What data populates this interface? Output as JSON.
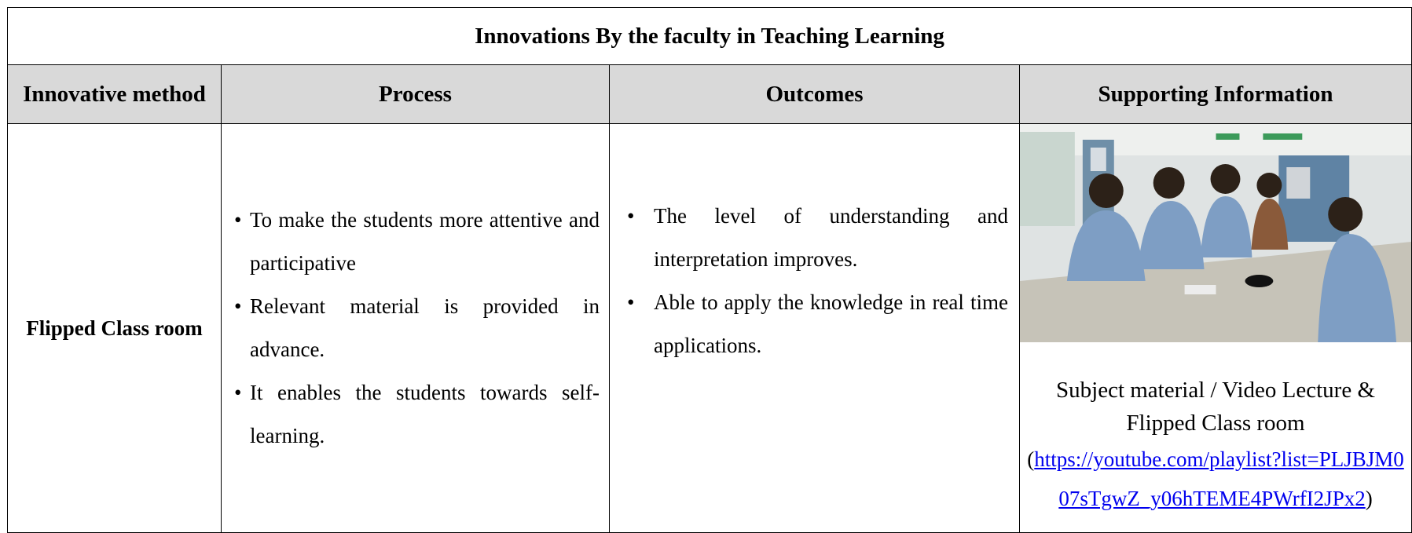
{
  "title": "Innovations By the faculty in Teaching Learning",
  "table": {
    "headers": [
      "Innovative method",
      "Process",
      "Outcomes",
      "Supporting Information"
    ],
    "rows": [
      {
        "method": "Flipped Class room",
        "process": [
          "To make the students more attentive and participative",
          "Relevant material is provided in advance.",
          "It enables the students towards self-learning."
        ],
        "outcomes": [
          "The level of understanding and interpretation improves.",
          "Able to apply the knowledge in real time applications."
        ],
        "supporting": {
          "caption": "Subject material / Video Lecture & Flipped Class room",
          "link": {
            "open": "(",
            "url": "https://youtube.com/playlist?list=PLJBJM007sTgwZ_y06hTEME4PWrfI2JPx2",
            "close": ")"
          }
        }
      }
    ]
  }
}
